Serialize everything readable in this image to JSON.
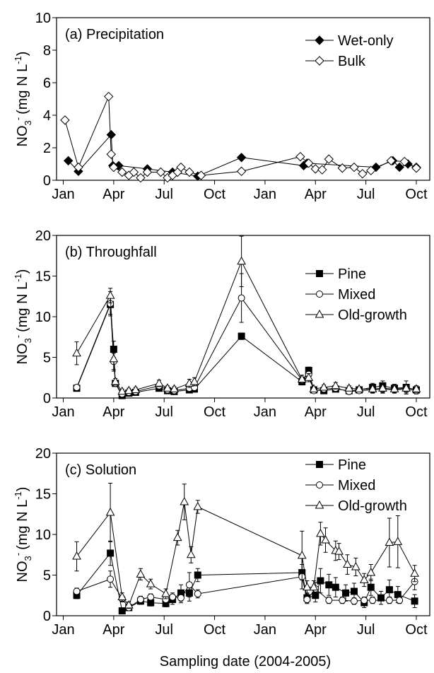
{
  "xlabel": "Sampling date (2004-2005)",
  "ylabel": {
    "main": "NO",
    "sub": "3",
    "sup": "-",
    "unit": "(mg N L",
    "unit_sup": "-1",
    "close": ")"
  },
  "chart_data": [
    {
      "type": "line",
      "title": "(a) Precipitation",
      "xlim": [
        -0.4,
        21.8
      ],
      "xticks": [
        {
          "value": 0,
          "label": "Jan"
        },
        {
          "value": 3,
          "label": "Apr"
        },
        {
          "value": 6,
          "label": "Jul"
        },
        {
          "value": 9,
          "label": "Oct"
        },
        {
          "value": 12,
          "label": "Jan"
        },
        {
          "value": 15,
          "label": "Apr"
        },
        {
          "value": 18,
          "label": "Jul"
        },
        {
          "value": 21,
          "label": "Oct"
        }
      ],
      "ylim": [
        0,
        10
      ],
      "yticks": [
        0,
        2,
        4,
        6,
        8,
        10
      ],
      "series": [
        {
          "name": "Wet-only",
          "color": "#000000",
          "marker": "diamond",
          "filled": true,
          "x": [
            0.3,
            0.9,
            2.85,
            2.95,
            3.3,
            5.0,
            6.5,
            8.0,
            10.6,
            14.3,
            14.5,
            18.6,
            19.6,
            20.0,
            20.5,
            21.0
          ],
          "values": [
            1.2,
            0.55,
            2.8,
            0.9,
            0.9,
            0.7,
            0.5,
            0.25,
            1.4,
            0.9,
            1.05,
            0.8,
            1.2,
            0.8,
            1.0,
            0.8
          ]
        },
        {
          "name": "Bulk",
          "color": "#000000",
          "marker": "diamond",
          "filled": false,
          "x": [
            0.1,
            0.9,
            2.7,
            2.85,
            3.0,
            3.5,
            3.9,
            4.2,
            4.6,
            5.0,
            5.8,
            6.2,
            6.5,
            6.8,
            7.0,
            7.5,
            8.2,
            10.6,
            14.1,
            14.6,
            15.0,
            15.4,
            15.8,
            16.6,
            17.3,
            17.8,
            18.3,
            19.5,
            20.3,
            21.0
          ],
          "values": [
            3.7,
            0.8,
            5.15,
            1.6,
            0.8,
            0.5,
            0.3,
            0.5,
            0.15,
            0.5,
            0.5,
            0.15,
            0.3,
            0.5,
            0.8,
            0.5,
            0.3,
            0.55,
            1.45,
            1.05,
            0.7,
            0.65,
            1.3,
            0.75,
            0.8,
            0.4,
            0.6,
            1.2,
            1.15,
            0.75
          ]
        }
      ]
    },
    {
      "type": "line",
      "title": "(b) Throughfall",
      "xlim": [
        -0.4,
        21.8
      ],
      "xticks": [
        {
          "value": 0,
          "label": "Jan"
        },
        {
          "value": 3,
          "label": "Apr"
        },
        {
          "value": 6,
          "label": "Jul"
        },
        {
          "value": 9,
          "label": "Oct"
        },
        {
          "value": 12,
          "label": "Jan"
        },
        {
          "value": 15,
          "label": "Apr"
        },
        {
          "value": 18,
          "label": "Jul"
        },
        {
          "value": 21,
          "label": "Oct"
        }
      ],
      "ylim": [
        0,
        20
      ],
      "yticks": [
        0,
        5,
        10,
        15,
        20
      ],
      "series": [
        {
          "name": "Pine",
          "color": "#000000",
          "marker": "square",
          "filled": true,
          "x": [
            0.8,
            2.8,
            3.0,
            3.1,
            3.5,
            3.9,
            4.3,
            5.7,
            6.2,
            6.6,
            7.5,
            7.8,
            10.6,
            14.2,
            14.6,
            14.9,
            15.5,
            16.2,
            17.0,
            17.6,
            18.4,
            19.0,
            19.7,
            20.4,
            21.0
          ],
          "values": [
            1.2,
            11.5,
            6.0,
            1.8,
            0.3,
            0.6,
            0.7,
            1.2,
            0.9,
            0.8,
            1.0,
            1.1,
            7.6,
            2.0,
            3.4,
            1.0,
            0.9,
            1.1,
            0.9,
            1.0,
            1.3,
            1.5,
            1.2,
            1.3,
            1.0
          ],
          "errors": [
            0.3,
            1.2,
            1.0,
            0.3,
            0.2,
            0.2,
            0.2,
            0.3,
            0.3,
            0.2,
            0.3,
            0.3,
            0.4,
            0.4,
            0.4,
            0.3,
            0.3,
            0.3,
            0.3,
            0.3,
            0.5,
            0.6,
            0.5,
            0.8,
            0.4
          ]
        },
        {
          "name": "Mixed",
          "color": "#000000",
          "marker": "circle",
          "filled": false,
          "x": [
            0.8,
            2.8,
            3.0,
            3.1,
            3.5,
            3.9,
            4.3,
            5.7,
            6.2,
            6.6,
            7.5,
            7.8,
            10.6,
            14.2,
            14.6,
            14.9,
            15.5,
            16.2,
            17.0,
            17.6,
            18.4,
            19.0,
            19.7,
            20.4,
            21.0
          ],
          "values": [
            1.3,
            11.6,
            4.5,
            1.8,
            0.5,
            0.7,
            0.8,
            1.5,
            1.0,
            0.9,
            1.2,
            1.3,
            12.3,
            2.2,
            2.9,
            0.9,
            1.1,
            1.2,
            0.8,
            0.9,
            1.0,
            1.1,
            1.0,
            1.1,
            0.9
          ],
          "errors": [
            0.3,
            1.5,
            1.0,
            0.3,
            0.2,
            0.2,
            0.2,
            0.3,
            0.3,
            0.3,
            0.3,
            0.3,
            3.0,
            0.4,
            0.4,
            0.3,
            0.3,
            0.3,
            0.3,
            0.3,
            0.4,
            0.5,
            0.4,
            0.6,
            0.4
          ]
        },
        {
          "name": "Old-growth",
          "color": "#000000",
          "marker": "triangle",
          "filled": false,
          "x": [
            0.8,
            2.8,
            3.0,
            3.1,
            3.5,
            3.9,
            4.3,
            5.7,
            6.2,
            6.6,
            7.5,
            7.8,
            10.6,
            14.2,
            14.6,
            14.9,
            15.5,
            16.2,
            17.0,
            17.6,
            18.4,
            19.0,
            19.7,
            20.4,
            21.0
          ],
          "values": [
            5.5,
            12.6,
            4.8,
            2.0,
            0.8,
            0.9,
            1.0,
            1.8,
            1.2,
            1.1,
            1.8,
            2.0,
            16.8,
            2.3,
            2.5,
            1.1,
            1.3,
            1.5,
            1.2,
            1.1,
            1.1,
            1.2,
            1.1,
            1.2,
            1.1
          ],
          "errors": [
            1.4,
            0.9,
            1.5,
            0.4,
            0.3,
            0.3,
            0.3,
            0.4,
            0.3,
            0.3,
            0.5,
            0.5,
            3.1,
            0.5,
            0.5,
            0.3,
            0.3,
            0.4,
            0.3,
            0.3,
            0.4,
            0.5,
            0.4,
            0.5,
            0.4
          ]
        }
      ]
    },
    {
      "type": "line",
      "title": "(c) Solution",
      "xlim": [
        -0.4,
        21.8
      ],
      "xticks": [
        {
          "value": 0,
          "label": "Jan"
        },
        {
          "value": 3,
          "label": "Apr"
        },
        {
          "value": 6,
          "label": "Jul"
        },
        {
          "value": 9,
          "label": "Oct"
        },
        {
          "value": 12,
          "label": "Jan"
        },
        {
          "value": 15,
          "label": "Apr"
        },
        {
          "value": 18,
          "label": "Jul"
        },
        {
          "value": 21,
          "label": "Oct"
        }
      ],
      "ylim": [
        0,
        20
      ],
      "yticks": [
        0,
        5,
        10,
        15,
        20
      ],
      "series": [
        {
          "name": "Pine",
          "color": "#000000",
          "marker": "square",
          "filled": true,
          "x": [
            0.8,
            2.8,
            3.5,
            3.9,
            4.6,
            5.2,
            6.1,
            6.5,
            7.0,
            7.5,
            8.0,
            14.2,
            14.5,
            15.0,
            15.3,
            15.8,
            16.2,
            16.8,
            17.3,
            17.9,
            18.3,
            18.9,
            19.4,
            19.9,
            20.9
          ],
          "values": [
            2.5,
            7.7,
            0.6,
            1.0,
            1.8,
            1.6,
            1.5,
            2.0,
            2.8,
            2.8,
            5.0,
            5.3,
            2.2,
            2.5,
            4.3,
            3.8,
            3.5,
            2.8,
            3.0,
            1.6,
            3.5,
            2.2,
            3.2,
            2.6,
            1.8
          ],
          "errors": [
            0.4,
            1.5,
            0.3,
            0.3,
            0.4,
            0.4,
            0.4,
            0.6,
            1.0,
            1.0,
            0.8,
            2.0,
            0.6,
            0.8,
            1.5,
            1.3,
            1.2,
            1.0,
            1.0,
            0.6,
            1.0,
            0.8,
            1.2,
            1.0,
            0.8
          ]
        },
        {
          "name": "Mixed",
          "color": "#000000",
          "marker": "circle",
          "filled": false,
          "x": [
            0.8,
            2.8,
            3.5,
            3.9,
            4.6,
            5.2,
            6.1,
            6.5,
            7.0,
            7.5,
            8.0,
            14.2,
            14.5,
            15.0,
            15.8,
            16.6,
            17.3,
            17.9,
            18.4,
            19.4,
            20.0,
            20.9
          ],
          "values": [
            3.0,
            4.5,
            2.1,
            1.0,
            2.0,
            2.3,
            2.0,
            2.3,
            2.2,
            3.8,
            2.7,
            4.8,
            2.0,
            3.3,
            1.9,
            1.9,
            1.8,
            1.9,
            1.9,
            1.9,
            1.9,
            4.2
          ],
          "errors": [
            0.4,
            1.0,
            0.4,
            0.3,
            0.4,
            0.4,
            0.4,
            0.5,
            0.6,
            1.5,
            0.5,
            1.5,
            0.5,
            0.8,
            0.4,
            0.4,
            0.4,
            0.4,
            0.4,
            0.4,
            0.4,
            1.0
          ]
        },
        {
          "name": "Old-growth",
          "color": "#000000",
          "marker": "triangle",
          "filled": false,
          "x": [
            0.8,
            2.8,
            3.5,
            3.9,
            4.6,
            5.2,
            6.1,
            6.8,
            7.2,
            7.6,
            8.0,
            14.2,
            14.5,
            14.9,
            15.3,
            15.6,
            16.2,
            16.4,
            16.9,
            17.4,
            17.9,
            18.3,
            19.4,
            19.9,
            20.9
          ],
          "values": [
            7.3,
            12.7,
            2.3,
            1.3,
            5.1,
            3.9,
            2.7,
            9.6,
            14.0,
            7.5,
            13.4,
            7.4,
            3.5,
            3.5,
            10.1,
            9.3,
            8.0,
            7.9,
            6.3,
            6.0,
            4.4,
            5.3,
            9.0,
            9.1,
            5.2
          ],
          "errors": [
            1.8,
            3.6,
            0.5,
            0.4,
            0.7,
            0.6,
            0.6,
            0.9,
            2.2,
            1.0,
            0.8,
            3.0,
            0.8,
            0.8,
            1.4,
            1.5,
            1.2,
            1.0,
            1.2,
            1.1,
            0.8,
            1.0,
            3.0,
            3.2,
            1.0
          ]
        }
      ]
    }
  ]
}
